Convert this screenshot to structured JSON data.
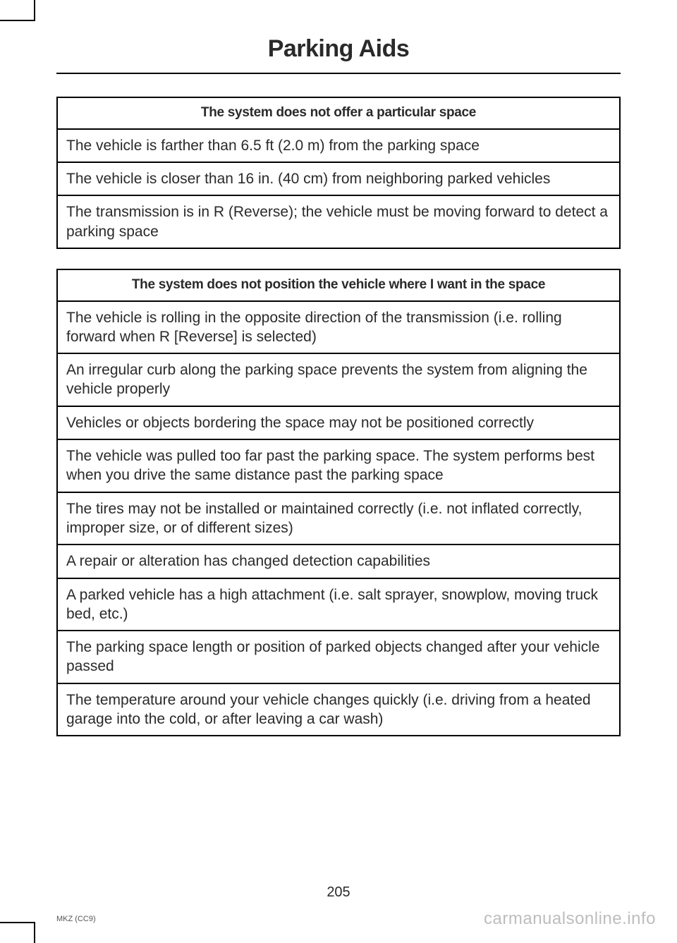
{
  "chapter_title": "Parking Aids",
  "page_number": "205",
  "footer_left": "MKZ (CC9)",
  "watermark": "carmanualsonline.info",
  "table1": {
    "header": "The system does not offer a particular space",
    "rows": [
      "The vehicle is farther than 6.5 ft (2.0 m) from the parking space",
      "The vehicle is closer than 16 in. (40 cm) from neighboring parked vehicles",
      "The transmission is in R (Reverse); the vehicle must be moving forward to detect a parking space"
    ]
  },
  "table2": {
    "header": "The system does not position the vehicle where I want in the space",
    "rows": [
      "The vehicle is rolling in the opposite direction of the transmission (i.e. rolling forward when R [Reverse] is selected)",
      "An irregular curb along the parking space prevents the system from aligning the vehicle properly",
      "Vehicles or objects bordering the space may not be positioned correctly",
      "The vehicle was pulled too far past the parking space. The system performs best when you drive the same distance past the parking space",
      "The tires may not be installed or maintained correctly (i.e. not inflated correctly, improper size, or of different sizes)",
      "A repair or alteration has changed detection capabilities",
      "A parked vehicle has a high attachment (i.e. salt sprayer, snowplow, moving truck bed, etc.)",
      "The parking space length or position of parked objects changed after your vehicle passed",
      "The temperature around your vehicle changes quickly (i.e. driving from a heated garage into the cold, or after leaving a car wash)"
    ]
  }
}
